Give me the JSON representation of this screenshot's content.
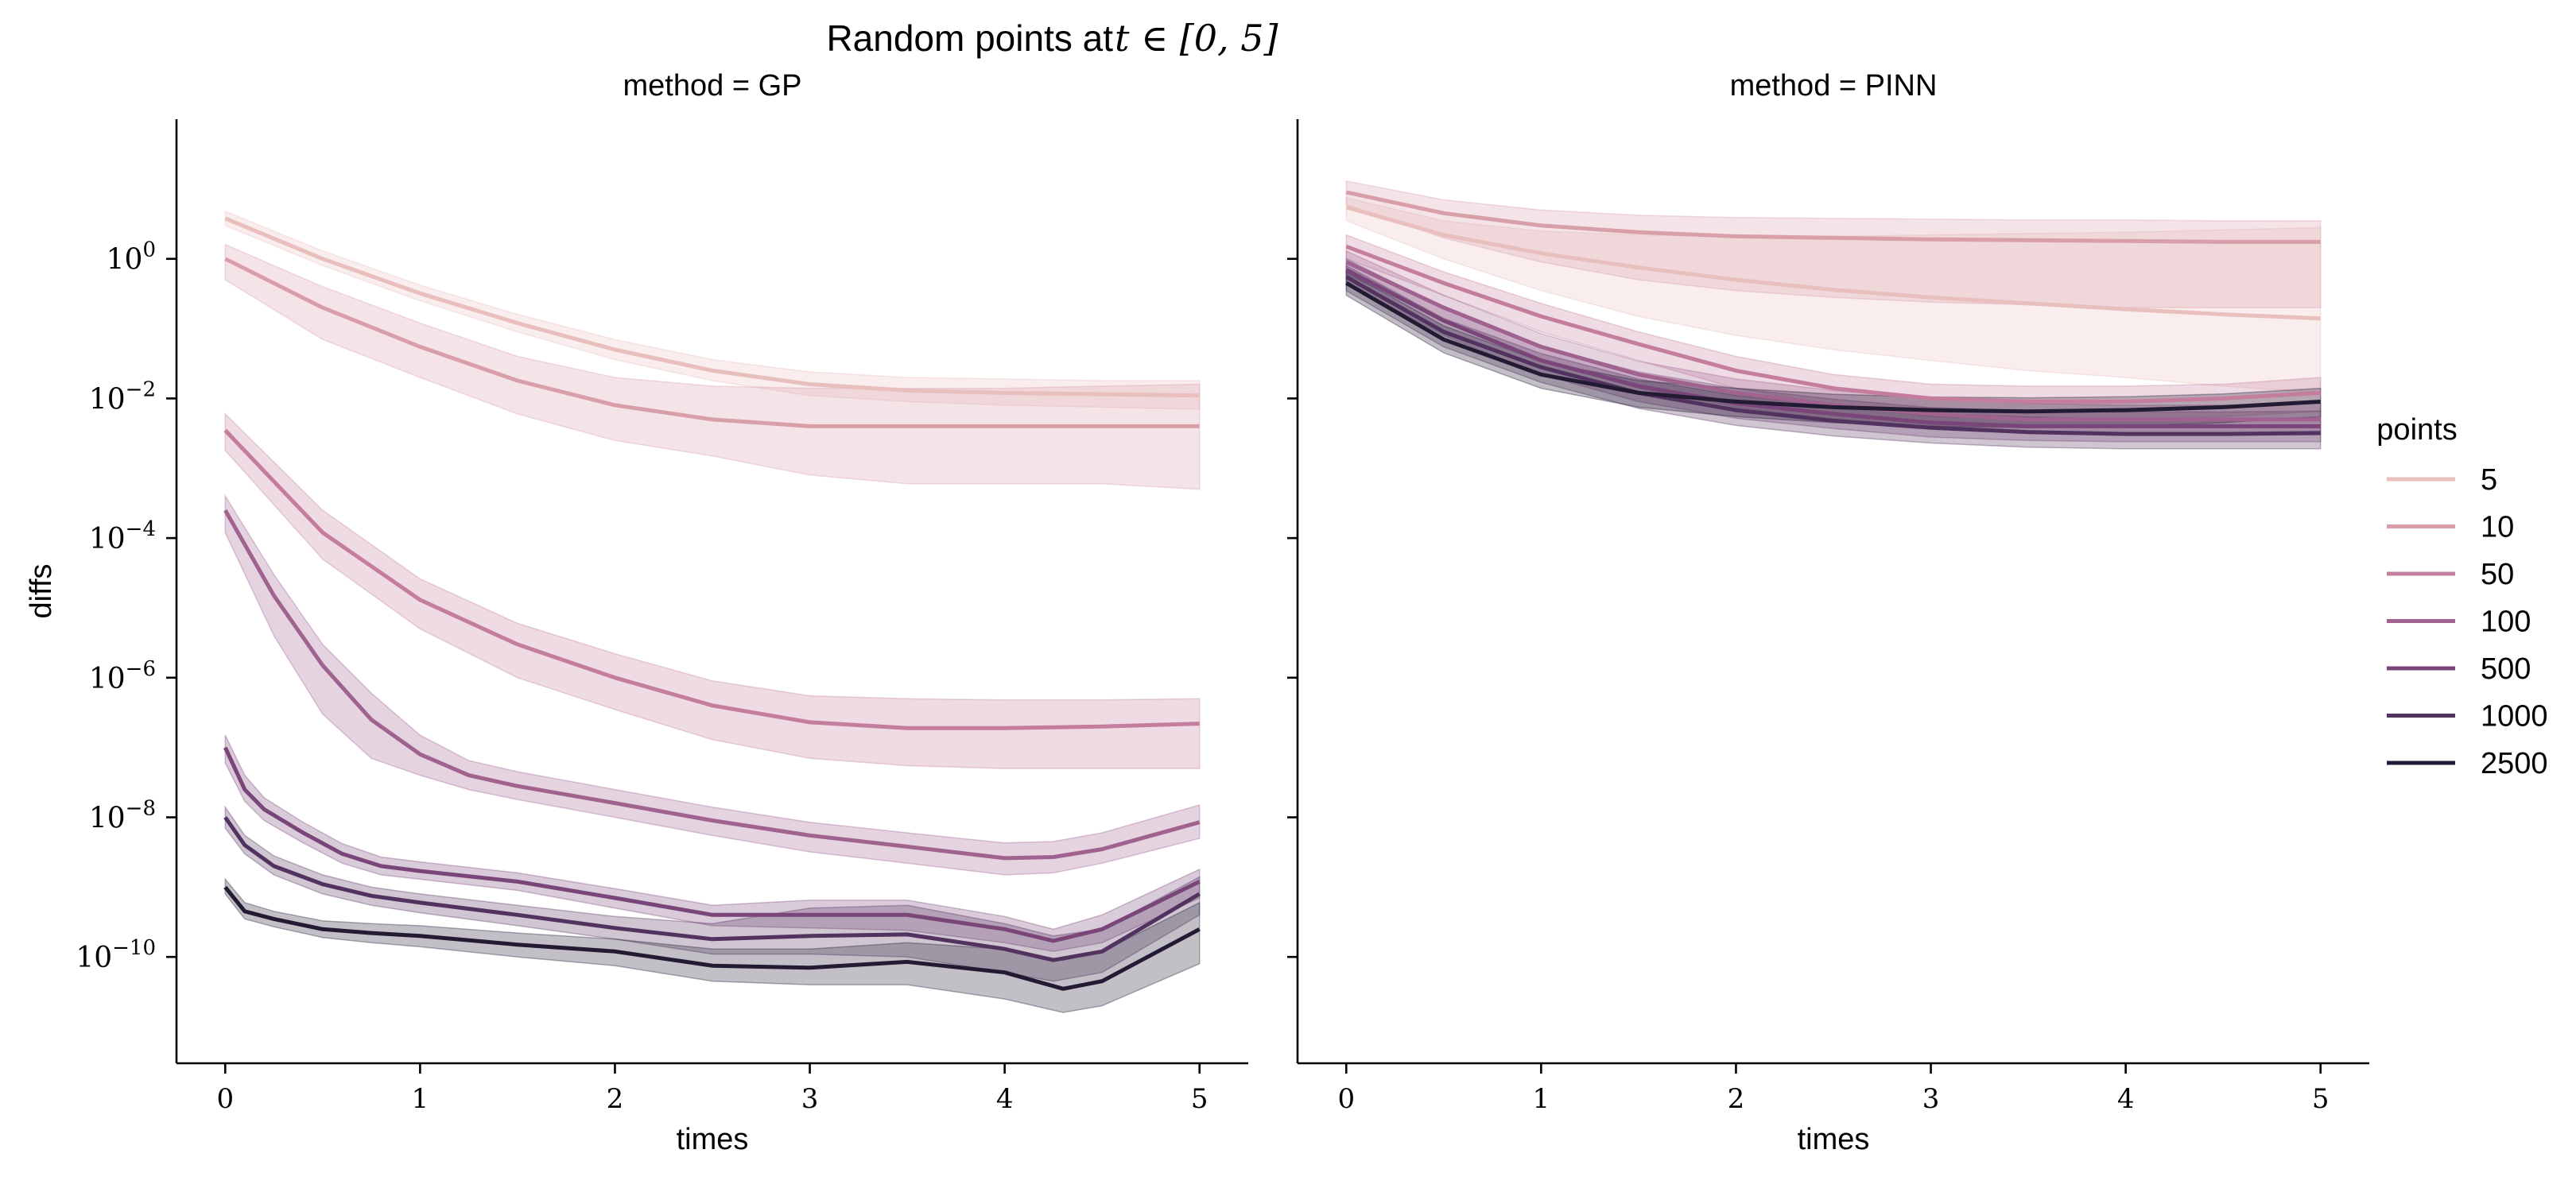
{
  "chart_data": {
    "type": "line",
    "title_text": "Random points at ",
    "title_math": "t ∈ [0, 5]",
    "xlabel": "times",
    "ylabel": "diffs",
    "y_scale": "log",
    "ylim": [
      3e-12,
      100.0
    ],
    "xlim": [
      -0.25,
      5.25
    ],
    "x_ticks": [
      0,
      1,
      2,
      3,
      4,
      5
    ],
    "y_ticks": [
      {
        "value": 1,
        "base": "10",
        "exp": "0"
      },
      {
        "value": 0.01,
        "base": "10",
        "exp": "−2"
      },
      {
        "value": 0.0001,
        "base": "10",
        "exp": "−4"
      },
      {
        "value": 1e-06,
        "base": "10",
        "exp": "−6"
      },
      {
        "value": 1e-08,
        "base": "10",
        "exp": "−8"
      },
      {
        "value": 1e-10,
        "base": "10",
        "exp": "−10"
      }
    ],
    "grid": false,
    "legend": {
      "title": "points",
      "placement": "right"
    },
    "panels": [
      {
        "title": "method = GP",
        "series": [
          {
            "name": "5",
            "color": "#e8bfbd",
            "x": [
              0,
              0.5,
              1,
              1.5,
              2,
              2.5,
              3,
              3.5,
              4,
              4.5,
              5
            ],
            "y": [
              3.8,
              1.0,
              0.32,
              0.12,
              0.05,
              0.025,
              0.016,
              0.013,
              0.012,
              0.0115,
              0.011
            ],
            "lower": [
              3.0,
              0.8,
              0.25,
              0.09,
              0.036,
              0.018,
              0.011,
              0.009,
              0.008,
              0.0075,
              0.007
            ],
            "upper": [
              4.8,
              1.3,
              0.42,
              0.16,
              0.07,
              0.036,
              0.024,
              0.02,
              0.019,
              0.018,
              0.018
            ]
          },
          {
            "name": "10",
            "color": "#d99fa9",
            "x": [
              0,
              0.5,
              1,
              1.5,
              2,
              2.5,
              3,
              3.5,
              4,
              4.5,
              5
            ],
            "y": [
              1.0,
              0.2,
              0.055,
              0.018,
              0.008,
              0.005,
              0.004,
              0.004,
              0.004,
              0.004,
              0.004
            ],
            "lower": [
              0.5,
              0.07,
              0.02,
              0.006,
              0.0025,
              0.0015,
              0.0008,
              0.0006,
              0.0006,
              0.0006,
              0.0005
            ],
            "upper": [
              1.6,
              0.4,
              0.12,
              0.04,
              0.02,
              0.015,
              0.014,
              0.014,
              0.014,
              0.015,
              0.016
            ]
          },
          {
            "name": "50",
            "color": "#c47d9d",
            "x": [
              0,
              0.5,
              1,
              1.5,
              2,
              2.5,
              3,
              3.5,
              4,
              4.5,
              5
            ],
            "y": [
              0.0035,
              0.00012,
              1.3e-05,
              3e-06,
              1e-06,
              4e-07,
              2.3e-07,
              1.9e-07,
              1.9e-07,
              2e-07,
              2.2e-07
            ],
            "lower": [
              0.0018,
              5e-05,
              5e-06,
              1e-06,
              3.5e-07,
              1.3e-07,
              7e-08,
              5.5e-08,
              5e-08,
              5e-08,
              5e-08
            ],
            "upper": [
              0.006,
              0.00025,
              2.6e-05,
              6e-06,
              2.2e-06,
              9e-07,
              5.5e-07,
              5e-07,
              4.8e-07,
              4.8e-07,
              5e-07
            ]
          },
          {
            "name": "100",
            "color": "#a0628f",
            "x": [
              0,
              0.25,
              0.5,
              0.75,
              1,
              1.25,
              1.5,
              2,
              2.5,
              3,
              3.5,
              4,
              4.25,
              4.5,
              5
            ],
            "y": [
              0.00025,
              1.5e-05,
              1.5e-06,
              2.5e-07,
              8e-08,
              4e-08,
              2.8e-08,
              1.6e-08,
              9e-09,
              5.5e-09,
              3.8e-09,
              2.6e-09,
              2.7e-09,
              3.5e-09,
              8.5e-09
            ],
            "lower": [
              0.00012,
              4e-06,
              3e-07,
              7e-08,
              4e-08,
              2.5e-08,
              1.8e-08,
              1e-08,
              5.5e-09,
              3.2e-09,
              2.2e-09,
              1.5e-09,
              1.6e-09,
              2.2e-09,
              5e-09
            ],
            "upper": [
              0.0004,
              3e-05,
              3e-06,
              6e-07,
              1.5e-07,
              6.5e-08,
              4.5e-08,
              2.5e-08,
              1.4e-08,
              8.5e-09,
              6e-09,
              4.3e-09,
              4.5e-09,
              6e-09,
              1.5e-08
            ]
          },
          {
            "name": "500",
            "color": "#7a4679",
            "x": [
              0,
              0.1,
              0.2,
              0.4,
              0.6,
              0.8,
              1,
              1.5,
              2,
              2.5,
              3,
              3.5,
              4,
              4.25,
              4.5,
              5
            ],
            "y": [
              1e-07,
              2.5e-08,
              1.3e-08,
              6e-09,
              3e-09,
              2e-09,
              1.7e-09,
              1.2e-09,
              7e-10,
              4e-10,
              4e-10,
              4e-10,
              2.5e-10,
              1.7e-10,
              2.5e-10,
              1.2e-09
            ],
            "lower": [
              6e-08,
              1.7e-08,
              9e-09,
              4.3e-09,
              2.2e-09,
              1.5e-09,
              1.3e-09,
              9e-10,
              5e-10,
              2.8e-10,
              2.6e-10,
              2.4e-10,
              1.6e-10,
              1.2e-10,
              1.6e-10,
              7e-10
            ],
            "upper": [
              1.5e-07,
              4e-08,
              1.9e-08,
              8.5e-09,
              4.2e-09,
              2.7e-09,
              2.3e-09,
              1.6e-09,
              9.5e-10,
              5.5e-10,
              6.5e-10,
              6.5e-10,
              3.8e-10,
              2.5e-10,
              4e-10,
              1.8e-09
            ]
          },
          {
            "name": "1000",
            "color": "#52325f",
            "x": [
              0,
              0.1,
              0.25,
              0.5,
              0.75,
              1,
              1.5,
              2,
              2.5,
              3,
              3.5,
              4,
              4.25,
              4.5,
              5
            ],
            "y": [
              1e-08,
              4e-09,
              2e-09,
              1.1e-09,
              7.5e-10,
              6e-10,
              4e-10,
              2.6e-10,
              1.8e-10,
              2e-10,
              2.1e-10,
              1.3e-10,
              9e-11,
              1.2e-10,
              8e-10
            ],
            "lower": [
              7e-09,
              3e-09,
              1.5e-09,
              8e-10,
              5.5e-10,
              4.3e-10,
              2.8e-10,
              1.8e-10,
              1.1e-10,
              1.1e-10,
              1e-10,
              6e-11,
              4.5e-11,
              6e-11,
              4e-10
            ],
            "upper": [
              1.4e-08,
              5.5e-09,
              2.8e-09,
              1.5e-09,
              1e-09,
              8e-10,
              5.5e-10,
              3.8e-10,
              3e-10,
              5e-10,
              5.5e-10,
              3e-10,
              2e-10,
              2.5e-10,
              1.4e-09
            ]
          },
          {
            "name": "2500",
            "color": "#231b34",
            "x": [
              0,
              0.1,
              0.25,
              0.5,
              0.75,
              1,
              1.5,
              2,
              2.5,
              3,
              3.5,
              4,
              4.3,
              4.5,
              5
            ],
            "y": [
              1e-09,
              4.5e-10,
              3.5e-10,
              2.5e-10,
              2.2e-10,
              2e-10,
              1.5e-10,
              1.2e-10,
              7.5e-11,
              7e-11,
              8.5e-11,
              6e-11,
              3.5e-11,
              4.5e-11,
              2.5e-10
            ],
            "lower": [
              8e-10,
              3.5e-10,
              2.7e-10,
              1.9e-10,
              1.6e-10,
              1.4e-10,
              1e-10,
              7.5e-11,
              4.5e-11,
              4e-11,
              4e-11,
              2.5e-11,
              1.6e-11,
              2e-11,
              8e-11
            ],
            "upper": [
              1.3e-09,
              6e-10,
              4.5e-10,
              3.3e-10,
              3e-10,
              2.8e-10,
              2.2e-10,
              1.8e-10,
              1.3e-10,
              1.3e-10,
              1.6e-10,
              1.3e-10,
              9e-11,
              1.2e-10,
              6e-10
            ]
          }
        ]
      },
      {
        "title": "method = PINN",
        "series": [
          {
            "name": "5",
            "color": "#e8bfbd",
            "x": [
              0,
              0.5,
              1,
              1.5,
              2,
              2.5,
              3,
              3.5,
              4,
              4.5,
              5
            ],
            "y": [
              5.5,
              2.2,
              1.2,
              0.75,
              0.5,
              0.36,
              0.28,
              0.23,
              0.19,
              0.16,
              0.14
            ],
            "lower": [
              3.5,
              1.0,
              0.35,
              0.15,
              0.08,
              0.05,
              0.035,
              0.025,
              0.02,
              0.015,
              0.012
            ],
            "upper": [
              7.5,
              3.5,
              2.5,
              2.2,
              2.1,
              2.1,
              2.2,
              2.3,
              2.4,
              2.6,
              2.8
            ]
          },
          {
            "name": "10",
            "color": "#d99fa9",
            "x": [
              0,
              0.5,
              1,
              1.5,
              2,
              2.5,
              3,
              3.5,
              4,
              4.5,
              5
            ],
            "y": [
              9.0,
              4.5,
              3.0,
              2.4,
              2.1,
              2.0,
              1.9,
              1.85,
              1.8,
              1.75,
              1.75
            ],
            "lower": [
              6.0,
              2.0,
              0.9,
              0.5,
              0.35,
              0.28,
              0.24,
              0.22,
              0.2,
              0.2,
              0.2
            ],
            "upper": [
              13.0,
              7.0,
              5.0,
              4.2,
              3.9,
              3.8,
              3.7,
              3.6,
              3.6,
              3.5,
              3.5
            ]
          },
          {
            "name": "50",
            "color": "#c47d9d",
            "x": [
              0,
              0.5,
              1,
              1.5,
              2,
              2.5,
              3,
              3.5,
              4,
              4.5,
              5
            ],
            "y": [
              1.5,
              0.45,
              0.15,
              0.06,
              0.025,
              0.014,
              0.01,
              0.009,
              0.009,
              0.01,
              0.012
            ],
            "lower": [
              1.0,
              0.3,
              0.09,
              0.035,
              0.014,
              0.008,
              0.0055,
              0.005,
              0.005,
              0.0055,
              0.0065
            ],
            "upper": [
              2.2,
              0.65,
              0.23,
              0.09,
              0.04,
              0.022,
              0.016,
              0.015,
              0.015,
              0.016,
              0.02
            ]
          },
          {
            "name": "100",
            "color": "#a0628f",
            "x": [
              0,
              0.5,
              1,
              1.5,
              2,
              2.5,
              3,
              3.5,
              4,
              4.5,
              5
            ],
            "y": [
              0.9,
              0.2,
              0.055,
              0.022,
              0.012,
              0.008,
              0.006,
              0.005,
              0.005,
              0.005,
              0.005
            ],
            "lower": [
              0.6,
              0.13,
              0.035,
              0.014,
              0.0075,
              0.005,
              0.0038,
              0.0032,
              0.003,
              0.003,
              0.003
            ],
            "upper": [
              1.3,
              0.3,
              0.085,
              0.034,
              0.019,
              0.013,
              0.01,
              0.0085,
              0.008,
              0.008,
              0.0085
            ]
          },
          {
            "name": "500",
            "color": "#7a4679",
            "x": [
              0,
              0.5,
              1,
              1.5,
              2,
              2.5,
              3,
              3.5,
              4,
              4.5,
              5
            ],
            "y": [
              0.7,
              0.13,
              0.035,
              0.015,
              0.0085,
              0.006,
              0.0045,
              0.004,
              0.004,
              0.004,
              0.004
            ],
            "lower": [
              0.45,
              0.08,
              0.022,
              0.009,
              0.0052,
              0.0037,
              0.0028,
              0.0025,
              0.0024,
              0.0024,
              0.0024
            ],
            "upper": [
              1.0,
              0.2,
              0.055,
              0.024,
              0.014,
              0.0098,
              0.0074,
              0.0066,
              0.0064,
              0.0064,
              0.0066
            ]
          },
          {
            "name": "1000",
            "color": "#52325f",
            "x": [
              0,
              0.5,
              1,
              1.5,
              2,
              2.5,
              3,
              3.5,
              4,
              4.5,
              5
            ],
            "y": [
              0.55,
              0.09,
              0.028,
              0.012,
              0.0068,
              0.0048,
              0.0038,
              0.0033,
              0.0031,
              0.0031,
              0.0032
            ],
            "lower": [
              0.35,
              0.055,
              0.017,
              0.0072,
              0.0041,
              0.0029,
              0.0023,
              0.002,
              0.0019,
              0.0019,
              0.0019
            ],
            "upper": [
              0.8,
              0.14,
              0.044,
              0.019,
              0.011,
              0.0078,
              0.0062,
              0.0054,
              0.0051,
              0.0051,
              0.0053
            ]
          },
          {
            "name": "2500",
            "color": "#231b34",
            "x": [
              0,
              0.5,
              1,
              1.5,
              2,
              2.5,
              3,
              3.5,
              4,
              4.5,
              5
            ],
            "y": [
              0.45,
              0.07,
              0.022,
              0.012,
              0.009,
              0.0075,
              0.0068,
              0.0065,
              0.0068,
              0.0075,
              0.009
            ],
            "lower": [
              0.3,
              0.045,
              0.014,
              0.0075,
              0.0055,
              0.0045,
              0.004,
              0.0038,
              0.004,
              0.0045,
              0.0055
            ],
            "upper": [
              0.65,
              0.11,
              0.034,
              0.018,
              0.014,
              0.0115,
              0.0105,
              0.0102,
              0.0106,
              0.0116,
              0.014
            ]
          }
        ]
      }
    ]
  }
}
